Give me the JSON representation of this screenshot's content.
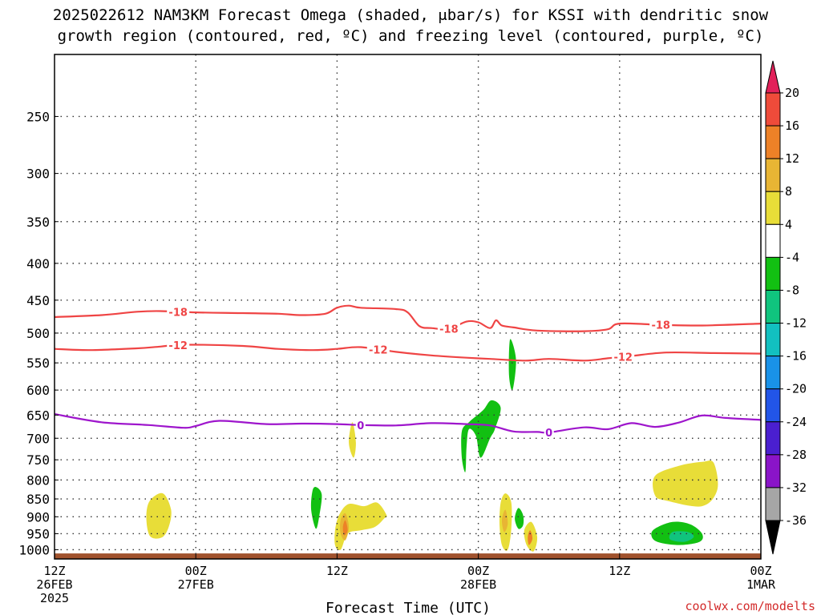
{
  "title": {
    "line1": "2025022612 NAM3KM Forecast Omega (shaded, μbar/s) for KSSI with dendritic snow",
    "line2": "growth region (contoured, red, ºC) and freezing level (contoured, purple, ºC)"
  },
  "credit": "coolwx.com/modelts",
  "chart_data": {
    "type": "time-height",
    "title": "2025022612 NAM3KM Forecast Omega (shaded, μbar/s) for KSSI with dendritic snow growth region (contoured, red, ºC) and freezing level (contoured, purple, ºC)",
    "xlabel": "Forecast Time (UTC)",
    "x_unit": "hours since 2025-02-26 12Z",
    "xlim": [
      0,
      60
    ],
    "x_ticks": [
      {
        "x": 0,
        "lines": [
          "12Z",
          "26FEB",
          "2025"
        ]
      },
      {
        "x": 12,
        "lines": [
          "00Z",
          "27FEB"
        ]
      },
      {
        "x": 24,
        "lines": [
          "12Z"
        ]
      },
      {
        "x": 36,
        "lines": [
          "00Z",
          "28FEB"
        ]
      },
      {
        "x": 48,
        "lines": [
          "12Z"
        ]
      },
      {
        "x": 60,
        "lines": [
          "00Z",
          "1MAR"
        ]
      }
    ],
    "y_axis": {
      "unit": "hPa",
      "scale": "log",
      "ylim": [
        1030,
        205
      ],
      "ticks": [
        250,
        300,
        350,
        400,
        450,
        500,
        550,
        600,
        650,
        700,
        750,
        800,
        850,
        900,
        950,
        1000
      ]
    },
    "colorbar": {
      "unit": "μbar/s",
      "labels": [
        20,
        16,
        12,
        8,
        4,
        -4,
        -8,
        -12,
        -16,
        -20,
        -24,
        -28,
        -32,
        -36
      ],
      "colors": [
        "#e2215a",
        "#ef4b3a",
        "#ed8127",
        "#e8b534",
        "#e8dd38",
        "#ffffff",
        "#12c012",
        "#10c47e",
        "#12c0c0",
        "#1992e8",
        "#2255e8",
        "#4a1fd0",
        "#8a14c8",
        "#a6a6a6",
        "#000000"
      ]
    },
    "contours": [
      {
        "name": "-18",
        "color": "#ef4444",
        "label_x": [
          10.5,
          33.5,
          51.5
        ],
        "points": [
          [
            0,
            475
          ],
          [
            4,
            472
          ],
          [
            7,
            467
          ],
          [
            9,
            466
          ],
          [
            12,
            468
          ],
          [
            16,
            469
          ],
          [
            19,
            470
          ],
          [
            21,
            472
          ],
          [
            23,
            470
          ],
          [
            24,
            461
          ],
          [
            25,
            458
          ],
          [
            26,
            461
          ],
          [
            29,
            463
          ],
          [
            30,
            468
          ],
          [
            31,
            489
          ],
          [
            32,
            492
          ],
          [
            33.5,
            493
          ],
          [
            35,
            482
          ],
          [
            36,
            483
          ],
          [
            37,
            492
          ],
          [
            37.5,
            480
          ],
          [
            38,
            488
          ],
          [
            39,
            491
          ],
          [
            41,
            496
          ],
          [
            45,
            497
          ],
          [
            47,
            494
          ],
          [
            48,
            485
          ],
          [
            51.5,
            487
          ],
          [
            55,
            488
          ],
          [
            60,
            485
          ]
        ]
      },
      {
        "name": "-12",
        "color": "#ef4444",
        "label_x": [
          10.5,
          27.5,
          48.3
        ],
        "points": [
          [
            0,
            526
          ],
          [
            3,
            528
          ],
          [
            7,
            525
          ],
          [
            9,
            522
          ],
          [
            11,
            519
          ],
          [
            16,
            521
          ],
          [
            19,
            526
          ],
          [
            22,
            528
          ],
          [
            24,
            526
          ],
          [
            26,
            523
          ],
          [
            29,
            531
          ],
          [
            32,
            537
          ],
          [
            35,
            541
          ],
          [
            37,
            543
          ],
          [
            40,
            546
          ],
          [
            42,
            543
          ],
          [
            45,
            546
          ],
          [
            47,
            542
          ],
          [
            49,
            538
          ],
          [
            52,
            532
          ],
          [
            56,
            533
          ],
          [
            60,
            534
          ]
        ]
      },
      {
        "name": "0",
        "color": "#9e16cc",
        "label_x": [
          26.0,
          42.0
        ],
        "points": [
          [
            0,
            648
          ],
          [
            4,
            665
          ],
          [
            8,
            671
          ],
          [
            11,
            677
          ],
          [
            12,
            673
          ],
          [
            14,
            662
          ],
          [
            18,
            669
          ],
          [
            21,
            668
          ],
          [
            24,
            669
          ],
          [
            26,
            671
          ],
          [
            29,
            672
          ],
          [
            32,
            667
          ],
          [
            35,
            669
          ],
          [
            37,
            672
          ],
          [
            39,
            685
          ],
          [
            41,
            686
          ],
          [
            42,
            687
          ],
          [
            45,
            676
          ],
          [
            47,
            680
          ],
          [
            49,
            667
          ],
          [
            51,
            675
          ],
          [
            53,
            666
          ],
          [
            55,
            651
          ],
          [
            57,
            656
          ],
          [
            60,
            660
          ]
        ]
      }
    ],
    "shaded_regions": [
      {
        "value": 4,
        "color": "#e8dd38",
        "points": [
          [
            8.1,
            855
          ],
          [
            9.2,
            835
          ],
          [
            9.9,
            880
          ],
          [
            9.7,
            930
          ],
          [
            9.1,
            962
          ],
          [
            8.1,
            957
          ],
          [
            7.8,
            900
          ]
        ]
      },
      {
        "value": 4,
        "color": "#e8dd38",
        "points": [
          [
            25.3,
            665
          ],
          [
            25.6,
            710
          ],
          [
            25.4,
            745
          ],
          [
            25.0,
            710
          ]
        ]
      },
      {
        "value": 4,
        "color": "#e8dd38",
        "points": [
          [
            26.3,
            870
          ],
          [
            27.4,
            860
          ],
          [
            28.2,
            895
          ],
          [
            28.0,
            905
          ],
          [
            27.2,
            930
          ],
          [
            26.0,
            940
          ],
          [
            24.9,
            950
          ],
          [
            24.3,
            1000
          ],
          [
            23.8,
            980
          ],
          [
            24.0,
            910
          ],
          [
            24.9,
            865
          ]
        ]
      },
      {
        "value": 4,
        "color": "#e8dd38",
        "points": [
          [
            38.3,
            835
          ],
          [
            38.8,
            860
          ],
          [
            38.8,
            935
          ],
          [
            38.5,
            1000
          ],
          [
            38.0,
            985
          ],
          [
            37.8,
            920
          ],
          [
            37.9,
            860
          ]
        ]
      },
      {
        "value": 4,
        "color": "#e8dd38",
        "points": [
          [
            40.5,
            915
          ],
          [
            41.0,
            960
          ],
          [
            40.7,
            1005
          ],
          [
            40.1,
            985
          ],
          [
            39.9,
            940
          ]
        ]
      },
      {
        "value": 4,
        "color": "#e8dd38",
        "points": [
          [
            53.0,
            765
          ],
          [
            55.0,
            755
          ],
          [
            56.0,
            758
          ],
          [
            56.3,
            825
          ],
          [
            55.0,
            870
          ],
          [
            52.0,
            855
          ],
          [
            51.0,
            840
          ],
          [
            51.0,
            790
          ]
        ]
      },
      {
        "value": 8,
        "color": "#e8b534",
        "points": [
          [
            24.7,
            890
          ],
          [
            25.0,
            930
          ],
          [
            24.7,
            970
          ],
          [
            24.3,
            950
          ],
          [
            24.3,
            910
          ]
        ]
      },
      {
        "value": 12,
        "color": "#ed8127",
        "points": [
          [
            24.7,
            910
          ],
          [
            24.9,
            940
          ],
          [
            24.6,
            955
          ],
          [
            24.5,
            930
          ]
        ]
      },
      {
        "value": 8,
        "color": "#e8b534",
        "points": [
          [
            38.3,
            880
          ],
          [
            38.5,
            920
          ],
          [
            38.2,
            945
          ],
          [
            38.0,
            910
          ]
        ]
      },
      {
        "value": 12,
        "color": "#ed8127",
        "points": [
          [
            40.4,
            940
          ],
          [
            40.6,
            965
          ],
          [
            40.3,
            985
          ],
          [
            40.2,
            960
          ]
        ]
      },
      {
        "value": -4,
        "color": "#12c012",
        "points": [
          [
            38.7,
            510
          ],
          [
            39.2,
            545
          ],
          [
            38.9,
            600
          ],
          [
            38.6,
            570
          ]
        ]
      },
      {
        "value": -4,
        "color": "#12c012",
        "points": [
          [
            37.1,
            620
          ],
          [
            37.9,
            635
          ],
          [
            37.4,
            680
          ],
          [
            37.0,
            700
          ],
          [
            36.2,
            745
          ],
          [
            35.8,
            695
          ],
          [
            35.2,
            680
          ],
          [
            35.0,
            720
          ],
          [
            34.9,
            780
          ],
          [
            34.6,
            745
          ],
          [
            34.6,
            685
          ],
          [
            35.2,
            665
          ],
          [
            36.4,
            640
          ]
        ]
      },
      {
        "value": -4,
        "color": "#12c012",
        "points": [
          [
            39.4,
            875
          ],
          [
            39.8,
            895
          ],
          [
            39.8,
            925
          ],
          [
            39.4,
            935
          ],
          [
            39.1,
            905
          ]
        ]
      },
      {
        "value": -4,
        "color": "#12c012",
        "points": [
          [
            22.2,
            818
          ],
          [
            22.7,
            838
          ],
          [
            22.5,
            895
          ],
          [
            22.2,
            935
          ],
          [
            21.8,
            880
          ],
          [
            21.9,
            830
          ]
        ]
      },
      {
        "value": -4,
        "color": "#12c012",
        "points": [
          [
            51.0,
            935
          ],
          [
            52.5,
            915
          ],
          [
            54.0,
            922
          ],
          [
            55.0,
            950
          ],
          [
            54.8,
            975
          ],
          [
            53.0,
            985
          ],
          [
            51.2,
            975
          ],
          [
            50.7,
            955
          ]
        ]
      },
      {
        "value": -8,
        "color": "#10c47e",
        "points": [
          [
            52.5,
            945
          ],
          [
            53.8,
            945
          ],
          [
            54.3,
            960
          ],
          [
            53.5,
            975
          ],
          [
            52.3,
            968
          ]
        ]
      }
    ],
    "ground": {
      "color": "#a0522d",
      "top_hPa": 1012
    }
  }
}
